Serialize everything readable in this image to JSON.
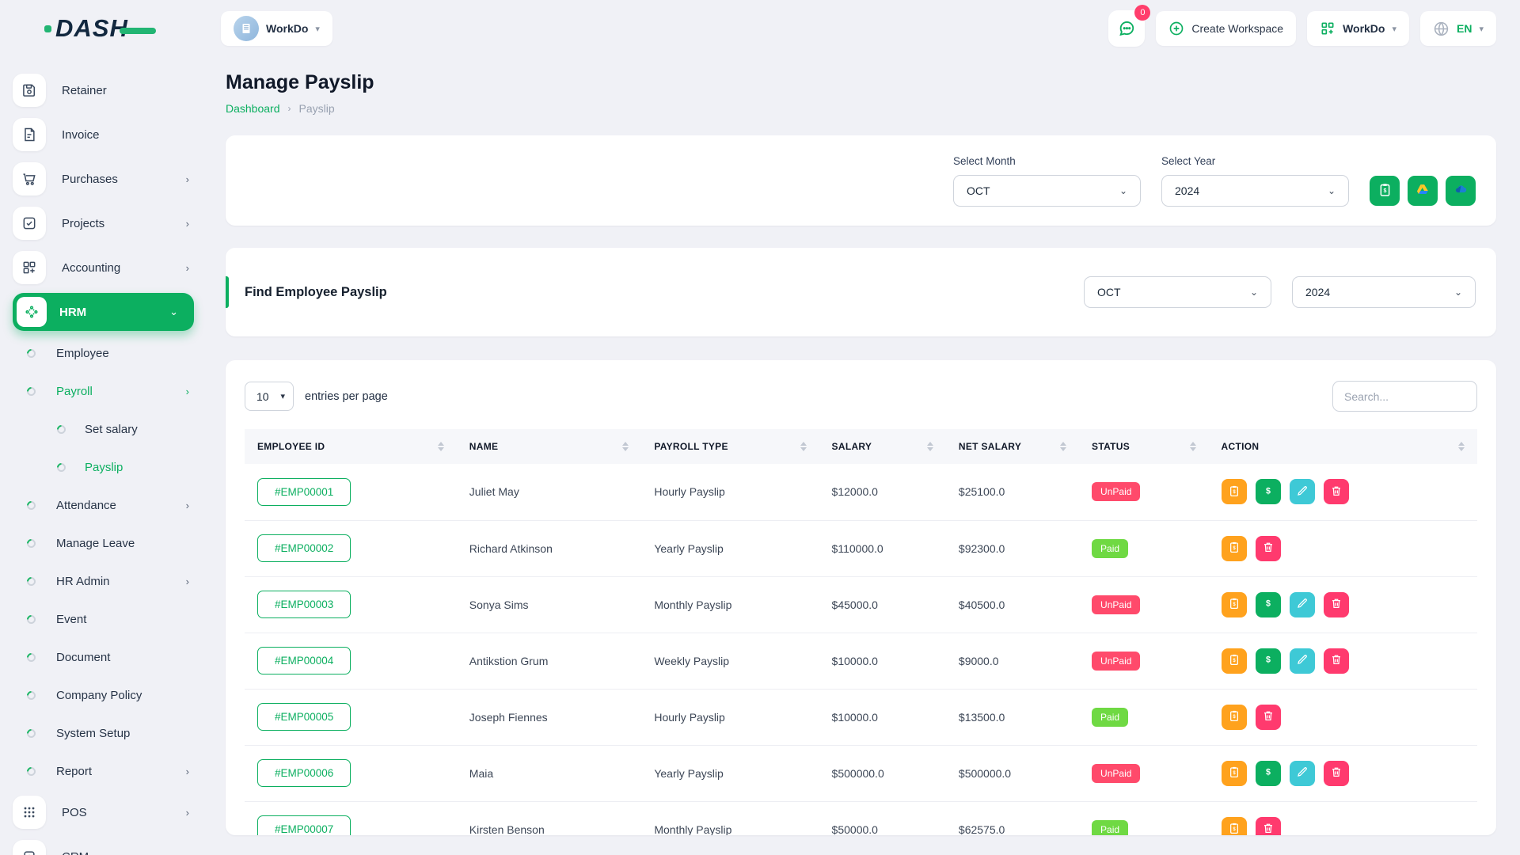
{
  "brand": {
    "name": "DASH"
  },
  "topbar": {
    "workspace_selector": {
      "label": "WorkDo"
    },
    "messages": {
      "badge": "0"
    },
    "create_workspace_label": "Create Workspace",
    "workdo_menu_label": "WorkDo",
    "language": "EN"
  },
  "sidebar": {
    "top_items": [
      {
        "label": "Retainer",
        "icon": "save-icon",
        "chevron": false,
        "active": false
      },
      {
        "label": "Invoice",
        "icon": "invoice-icon",
        "chevron": false,
        "active": false
      },
      {
        "label": "Purchases",
        "icon": "cart-icon",
        "chevron": true,
        "active": false
      },
      {
        "label": "Projects",
        "icon": "check-square-icon",
        "chevron": true,
        "active": false
      },
      {
        "label": "Accounting",
        "icon": "grid-plus-icon",
        "chevron": true,
        "active": false
      },
      {
        "label": "HRM",
        "icon": "hrm-icon",
        "chevron": "down",
        "active": true
      }
    ],
    "hrm_children": [
      {
        "label": "Employee",
        "nested": false,
        "chevron": false,
        "active": false
      },
      {
        "label": "Payroll",
        "nested": false,
        "chevron": true,
        "active": true
      },
      {
        "label": "Set salary",
        "nested": true,
        "chevron": false,
        "active": false
      },
      {
        "label": "Payslip",
        "nested": true,
        "chevron": false,
        "active": true
      },
      {
        "label": "Attendance",
        "nested": false,
        "chevron": true,
        "active": false
      },
      {
        "label": "Manage Leave",
        "nested": false,
        "chevron": false,
        "active": false
      },
      {
        "label": "HR Admin",
        "nested": false,
        "chevron": true,
        "active": false
      },
      {
        "label": "Event",
        "nested": false,
        "chevron": false,
        "active": false
      },
      {
        "label": "Document",
        "nested": false,
        "chevron": false,
        "active": false
      },
      {
        "label": "Company Policy",
        "nested": false,
        "chevron": false,
        "active": false
      },
      {
        "label": "System Setup",
        "nested": false,
        "chevron": false,
        "active": false
      },
      {
        "label": "Report",
        "nested": false,
        "chevron": true,
        "active": false
      }
    ],
    "bottom_items": [
      {
        "label": "POS",
        "icon": "pos-icon",
        "chevron": true,
        "active": false
      },
      {
        "label": "CRM",
        "icon": "crm-icon",
        "chevron": true,
        "active": false
      }
    ]
  },
  "page": {
    "title": "Manage Payslip",
    "breadcrumb_home": "Dashboard",
    "breadcrumb_current": "Payslip"
  },
  "filter_card": {
    "month_label": "Select Month",
    "month_value": "OCT",
    "year_label": "Select Year",
    "year_value": "2024",
    "buttons": [
      {
        "name": "generate-payslip-button",
        "icon": "clipboard-white-icon"
      },
      {
        "name": "google-drive-export-button",
        "icon": "drive-icon"
      },
      {
        "name": "onedrive-export-button",
        "icon": "onedrive-icon"
      }
    ]
  },
  "find_card": {
    "title": "Find Employee Payslip",
    "month_value": "OCT",
    "year_value": "2024"
  },
  "table_card": {
    "entries_value": "10",
    "entries_label": "entries per page",
    "search_placeholder": "Search...",
    "columns": [
      "EMPLOYEE ID",
      "NAME",
      "PAYROLL TYPE",
      "SALARY",
      "NET SALARY",
      "STATUS",
      "ACTION"
    ],
    "rows": [
      {
        "id": "#EMP00001",
        "name": "Juliet May",
        "type": "Hourly Payslip",
        "salary": "$12000.0",
        "net": "$25100.0",
        "status": "UnPaid",
        "actions": [
          "payslip",
          "pay",
          "edit",
          "delete"
        ]
      },
      {
        "id": "#EMP00002",
        "name": "Richard Atkinson",
        "type": "Yearly Payslip",
        "salary": "$110000.0",
        "net": "$92300.0",
        "status": "Paid",
        "actions": [
          "payslip",
          "delete"
        ]
      },
      {
        "id": "#EMP00003",
        "name": "Sonya Sims",
        "type": "Monthly Payslip",
        "salary": "$45000.0",
        "net": "$40500.0",
        "status": "UnPaid",
        "actions": [
          "payslip",
          "pay",
          "edit",
          "delete"
        ]
      },
      {
        "id": "#EMP00004",
        "name": "Antikstion Grum",
        "type": "Weekly Payslip",
        "salary": "$10000.0",
        "net": "$9000.0",
        "status": "UnPaid",
        "actions": [
          "payslip",
          "pay",
          "edit",
          "delete"
        ]
      },
      {
        "id": "#EMP00005",
        "name": "Joseph Fiennes",
        "type": "Hourly Payslip",
        "salary": "$10000.0",
        "net": "$13500.0",
        "status": "Paid",
        "actions": [
          "payslip",
          "delete"
        ]
      },
      {
        "id": "#EMP00006",
        "name": "Maia",
        "type": "Yearly Payslip",
        "salary": "$500000.0",
        "net": "$500000.0",
        "status": "UnPaid",
        "actions": [
          "payslip",
          "pay",
          "edit",
          "delete"
        ]
      },
      {
        "id": "#EMP00007",
        "name": "Kirsten Benson",
        "type": "Monthly Payslip",
        "salary": "$50000.0",
        "net": "$62575.0",
        "status": "Paid",
        "actions": [
          "payslip",
          "delete"
        ]
      }
    ]
  },
  "colors": {
    "primary_green": "#0CAF60",
    "paid_badge": "#6FD943",
    "unpaid_badge": "#FF4A6B",
    "action_orange": "#FFA21D",
    "action_cyan": "#3EC9D6",
    "action_red": "#FF3A6E",
    "logo_navy": "#12283F"
  }
}
